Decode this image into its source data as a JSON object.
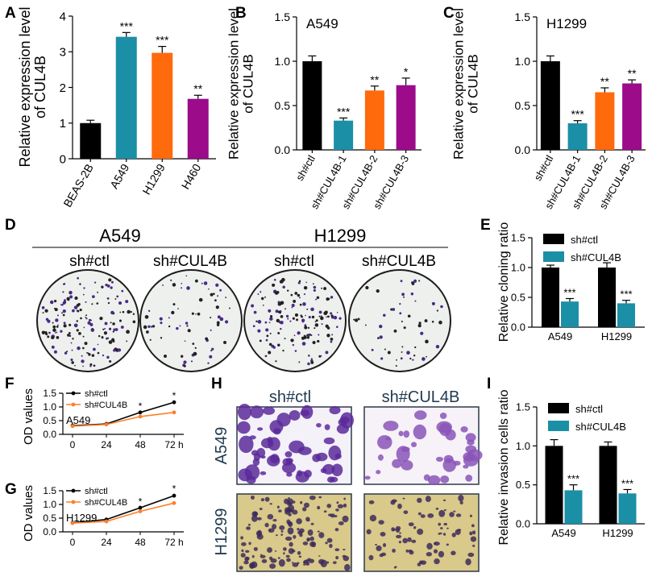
{
  "colors": {
    "black": "#000000",
    "teal": "#1b8fa6",
    "orange": "#ff6a0d",
    "purple": "#9b0b8a",
    "line_orange": "#ff7f27",
    "crystal_violet": "#5b2a9a",
    "transwell_bg": "#d9c98a"
  },
  "panels": {
    "A": {
      "letter": "A"
    },
    "B": {
      "letter": "B"
    },
    "C": {
      "letter": "C"
    },
    "D": {
      "letter": "D",
      "group1": "A549",
      "group2": "H1299",
      "labels": [
        "sh#ctl",
        "sh#CUL4B",
        "sh#ctl",
        "sh#CUL4B"
      ]
    },
    "E": {
      "letter": "E"
    },
    "F": {
      "letter": "F"
    },
    "G": {
      "letter": "G"
    },
    "H": {
      "letter": "H",
      "col1": "sh#ctl",
      "col2": "sh#CUL4B",
      "row1": "A549",
      "row2": "H1299"
    },
    "I": {
      "letter": "I"
    }
  },
  "chart_data": [
    {
      "id": "A",
      "type": "bar",
      "ylabel": [
        "Relative expression level",
        "of CUL4B"
      ],
      "categories": [
        "BEAS-2B",
        "A549",
        "H1299",
        "H460"
      ],
      "values": [
        1.0,
        3.42,
        2.97,
        1.68
      ],
      "errors": [
        0.08,
        0.12,
        0.18,
        0.1
      ],
      "colors": [
        "#000000",
        "#1b8fa6",
        "#ff6a0d",
        "#9b0b8a"
      ],
      "sig": [
        "",
        "***",
        "***",
        "**"
      ],
      "ylim": [
        0,
        4
      ],
      "yticks": [
        0,
        1,
        2,
        3,
        4
      ]
    },
    {
      "id": "B",
      "type": "bar",
      "title": "A549",
      "ylabel": [
        "Relative expression level",
        "of CUL4B"
      ],
      "categories": [
        "sh#ctl",
        "sh#CUL4B-1",
        "sh#CUL4B-2",
        "sh#CUL4B-3"
      ],
      "values": [
        1.0,
        0.33,
        0.67,
        0.73
      ],
      "errors": [
        0.06,
        0.03,
        0.05,
        0.08
      ],
      "colors": [
        "#000000",
        "#1b8fa6",
        "#ff6a0d",
        "#9b0b8a"
      ],
      "sig": [
        "",
        "***",
        "**",
        "*"
      ],
      "ylim": [
        0,
        1.5
      ],
      "yticks": [
        0.0,
        0.5,
        1.0,
        1.5
      ]
    },
    {
      "id": "C",
      "type": "bar",
      "title": "H1299",
      "ylabel": [
        "Relative expression level",
        "of CUL4B"
      ],
      "categories": [
        "sh#ctl",
        "sh#CUL4B-1",
        "sh#CUL4B-2",
        "sh#CUL4B-3"
      ],
      "values": [
        1.0,
        0.3,
        0.65,
        0.75
      ],
      "errors": [
        0.06,
        0.03,
        0.05,
        0.04
      ],
      "colors": [
        "#000000",
        "#1b8fa6",
        "#ff6a0d",
        "#9b0b8a"
      ],
      "sig": [
        "",
        "***",
        "**",
        "**"
      ],
      "ylim": [
        0,
        1.5
      ],
      "yticks": [
        0.0,
        0.5,
        1.0,
        1.5
      ]
    },
    {
      "id": "E",
      "type": "bar",
      "ylabel": [
        "Relative cloning ratio"
      ],
      "categories": [
        "A549",
        "H1299"
      ],
      "series": [
        {
          "name": "sh#ctl",
          "values": [
            1.0,
            1.0
          ],
          "errors": [
            0.04,
            0.08
          ],
          "color": "#000000"
        },
        {
          "name": "sh#CUL4B",
          "values": [
            0.43,
            0.4
          ],
          "errors": [
            0.05,
            0.05
          ],
          "color": "#1b8fa6"
        }
      ],
      "sig": [
        "***",
        "***"
      ],
      "ylim": [
        0,
        1.5
      ],
      "yticks": [
        0.0,
        0.5,
        1.0,
        1.5
      ]
    },
    {
      "id": "F",
      "type": "line",
      "ylabel": "OD values",
      "annotation": "A549",
      "x": [
        0,
        24,
        48,
        72
      ],
      "xticks": [
        "0",
        "24",
        "48",
        "72 h"
      ],
      "series": [
        {
          "name": "sh#ctl",
          "values": [
            0.32,
            0.38,
            0.8,
            1.17
          ],
          "errors": [
            0.02,
            0.02,
            0.05,
            0.07
          ],
          "color": "#000000"
        },
        {
          "name": "sh#CUL4B",
          "values": [
            0.3,
            0.36,
            0.65,
            0.8
          ],
          "errors": [
            0.02,
            0.02,
            0.05,
            0.06
          ],
          "color": "#ff7f27"
        }
      ],
      "sig": [
        "",
        "",
        "*",
        "*"
      ],
      "ylim": [
        0,
        1.5
      ],
      "yticks": [
        "0.0",
        "0.5",
        "1.0",
        "1.5"
      ]
    },
    {
      "id": "G",
      "type": "line",
      "ylabel": "OD values",
      "annotation": "H1299",
      "x": [
        0,
        24,
        48,
        72
      ],
      "xticks": [
        "0",
        "24",
        "48",
        "72 h"
      ],
      "series": [
        {
          "name": "sh#ctl",
          "values": [
            0.33,
            0.45,
            0.88,
            1.32
          ],
          "errors": [
            0.02,
            0.02,
            0.05,
            0.07
          ],
          "color": "#000000"
        },
        {
          "name": "sh#CUL4B",
          "values": [
            0.32,
            0.38,
            0.75,
            1.05
          ],
          "errors": [
            0.02,
            0.02,
            0.06,
            0.07
          ],
          "color": "#ff7f27"
        }
      ],
      "sig": [
        "",
        "",
        "*",
        "*"
      ],
      "ylim": [
        0,
        1.5
      ],
      "yticks": [
        "0.0",
        "0.5",
        "1.0",
        "1.5"
      ]
    },
    {
      "id": "I",
      "type": "bar",
      "ylabel": [
        "Relative invasion cells ratio"
      ],
      "categories": [
        "A549",
        "H1299"
      ],
      "series": [
        {
          "name": "sh#ctl",
          "values": [
            1.0,
            1.0
          ],
          "errors": [
            0.08,
            0.05
          ],
          "color": "#000000"
        },
        {
          "name": "sh#CUL4B",
          "values": [
            0.43,
            0.39
          ],
          "errors": [
            0.07,
            0.05
          ],
          "color": "#1b8fa6"
        }
      ],
      "sig": [
        "***",
        "***"
      ],
      "ylim": [
        0,
        1.5
      ],
      "yticks": [
        0.0,
        0.5,
        1.0,
        1.5
      ]
    }
  ]
}
